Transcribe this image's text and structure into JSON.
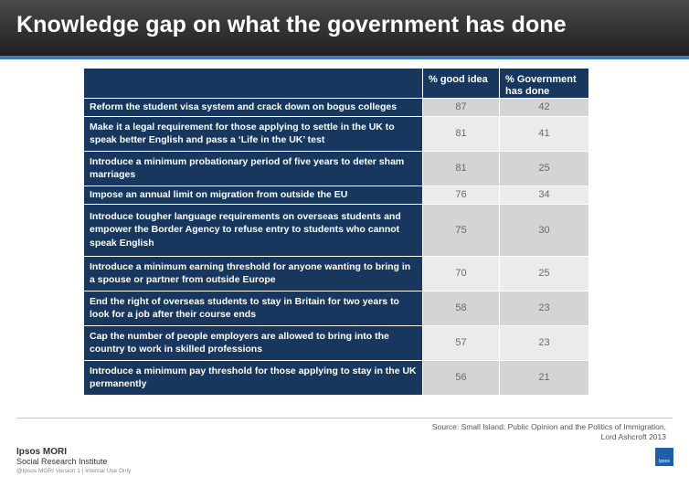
{
  "title": "Knowledge gap on what the government has done",
  "chart_data": {
    "type": "table",
    "columns": [
      "",
      "% good idea",
      "% Government has done"
    ],
    "rows": [
      {
        "label": "Reform the student visa system and crack down on bogus colleges",
        "good_idea": 87,
        "government_done": 42
      },
      {
        "label": "Make it a legal requirement for those applying to settle in the UK to speak better English and pass a ‘Life in the UK’ test",
        "good_idea": 81,
        "government_done": 41
      },
      {
        "label": "Introduce a minimum  probationary period of five years to deter sham marriages",
        "good_idea": 81,
        "government_done": 25
      },
      {
        "label": "Impose an annual limit on migration from outside the EU",
        "good_idea": 76,
        "government_done": 34
      },
      {
        "label": "Introduce tougher language requirements on overseas students and empower the Border Agency to refuse entry to students who cannot speak English",
        "good_idea": 75,
        "government_done": 30
      },
      {
        "label": "Introduce a minimum  earning threshold for anyone wanting to bring in a spouse or partner from outside Europe",
        "good_idea": 70,
        "government_done": 25
      },
      {
        "label": "End the right of overseas students to stay in Britain for two years to look for a job after their course ends",
        "good_idea": 58,
        "government_done": 23
      },
      {
        "label": "Cap the number of people employers are allowed to bring into the country to work in skilled professions",
        "good_idea": 57,
        "government_done": 23
      },
      {
        "label": "Introduce a minimum  pay threshold for those applying to stay in the UK permanently",
        "good_idea": 56,
        "government_done": 21
      }
    ]
  },
  "source": "Source: Small Island: Public Opinion and the Politics of Immigration,  Lord Ashcroft 2013",
  "brand": {
    "name": "Ipsos MORI",
    "sub": "Social Research Institute",
    "footer": "@Ipsos MORI    Version 1 | Internal Use Only",
    "logo_text": "Ipsos"
  },
  "colors": {
    "header_bg": "#2b2b2b",
    "accent_rule": "#3d7bbf",
    "table_header": "#17375e",
    "row_odd": "#d4d4d4",
    "row_even": "#ebebeb"
  }
}
